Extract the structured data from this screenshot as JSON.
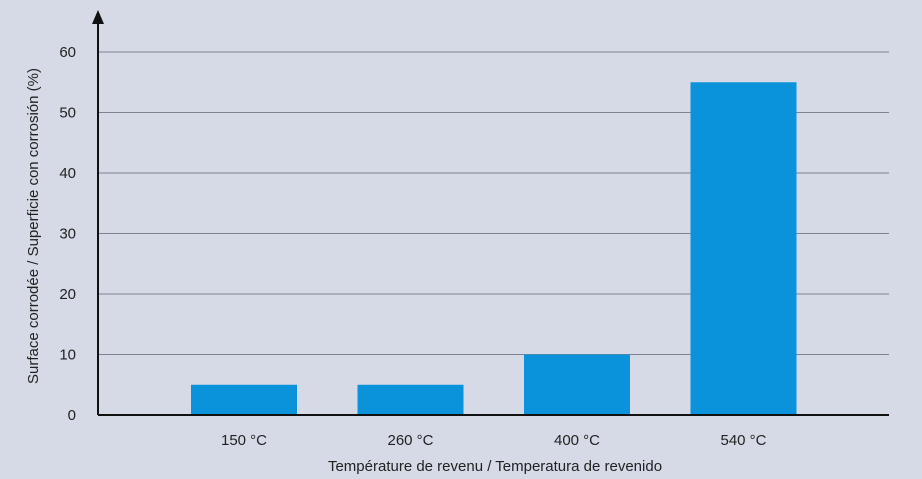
{
  "chart_data": {
    "type": "bar",
    "title": "",
    "categories": [
      "150 °C",
      "260 °C",
      "400 °C",
      "540 °C"
    ],
    "values": [
      5,
      5,
      10,
      55
    ],
    "xlabel": "Température de revenu / Temperatura de revenido",
    "ylabel": "Surface corrodée / Superficie con corrosión (%)",
    "ylim": [
      0,
      60
    ],
    "yticks": [
      0,
      10,
      20,
      30,
      40,
      50,
      60
    ],
    "grid": true,
    "legend": "none",
    "colors": {
      "background": "#d5dae6",
      "bar": "#0a93db",
      "grid": "#7f8391",
      "axis": "#111111",
      "text": "#222222"
    }
  }
}
